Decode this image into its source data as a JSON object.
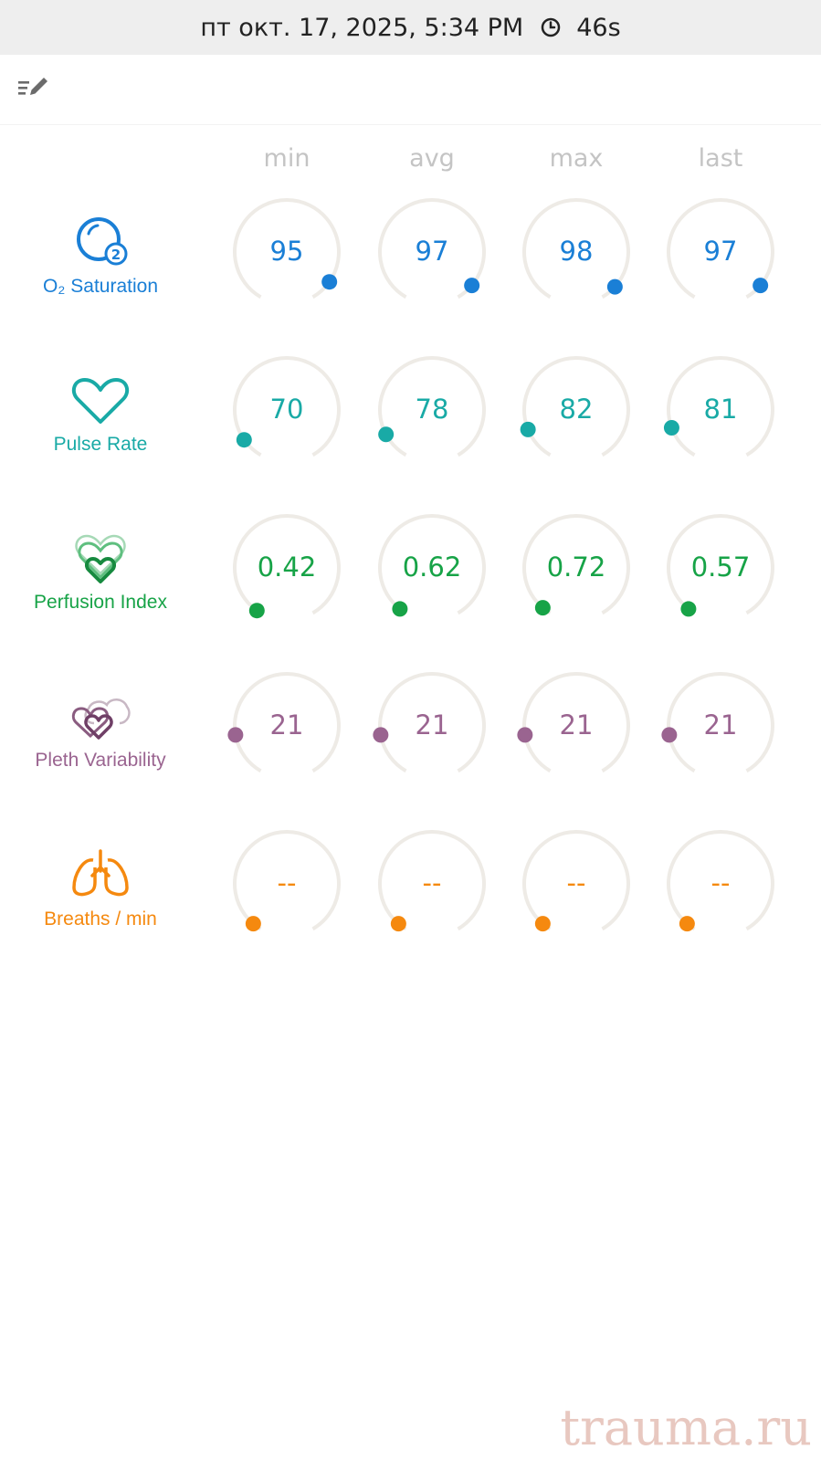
{
  "status_bar": {
    "datetime": "пт окт. 17, 2025, 5:34 PM",
    "duration": "46s"
  },
  "columns": [
    "min",
    "avg",
    "max",
    "last"
  ],
  "metrics": [
    {
      "key": "spo2",
      "label": "O₂ Saturation",
      "color": "#1a7fd6",
      "icon": "o2-icon",
      "values": [
        "95",
        "97",
        "98",
        "97"
      ]
    },
    {
      "key": "pr",
      "label": "Pulse Rate",
      "color": "#19aaa6",
      "icon": "heart-icon",
      "values": [
        "70",
        "78",
        "82",
        "81"
      ]
    },
    {
      "key": "pi",
      "label": "Perfusion Index",
      "color": "#17a347",
      "icon": "layered-hearts-icon",
      "values": [
        "0.42",
        "0.62",
        "0.72",
        "0.57"
      ]
    },
    {
      "key": "pvi",
      "label": "Pleth Variability",
      "color": "#9a6490",
      "icon": "pleth-hearts-icon",
      "values": [
        "21",
        "21",
        "21",
        "21"
      ]
    },
    {
      "key": "rr",
      "label": "Breaths / min",
      "color": "#f5890f",
      "icon": "lungs-icon",
      "values": [
        "--",
        "--",
        "--",
        "--"
      ]
    }
  ],
  "watermark": "trauma.ru"
}
